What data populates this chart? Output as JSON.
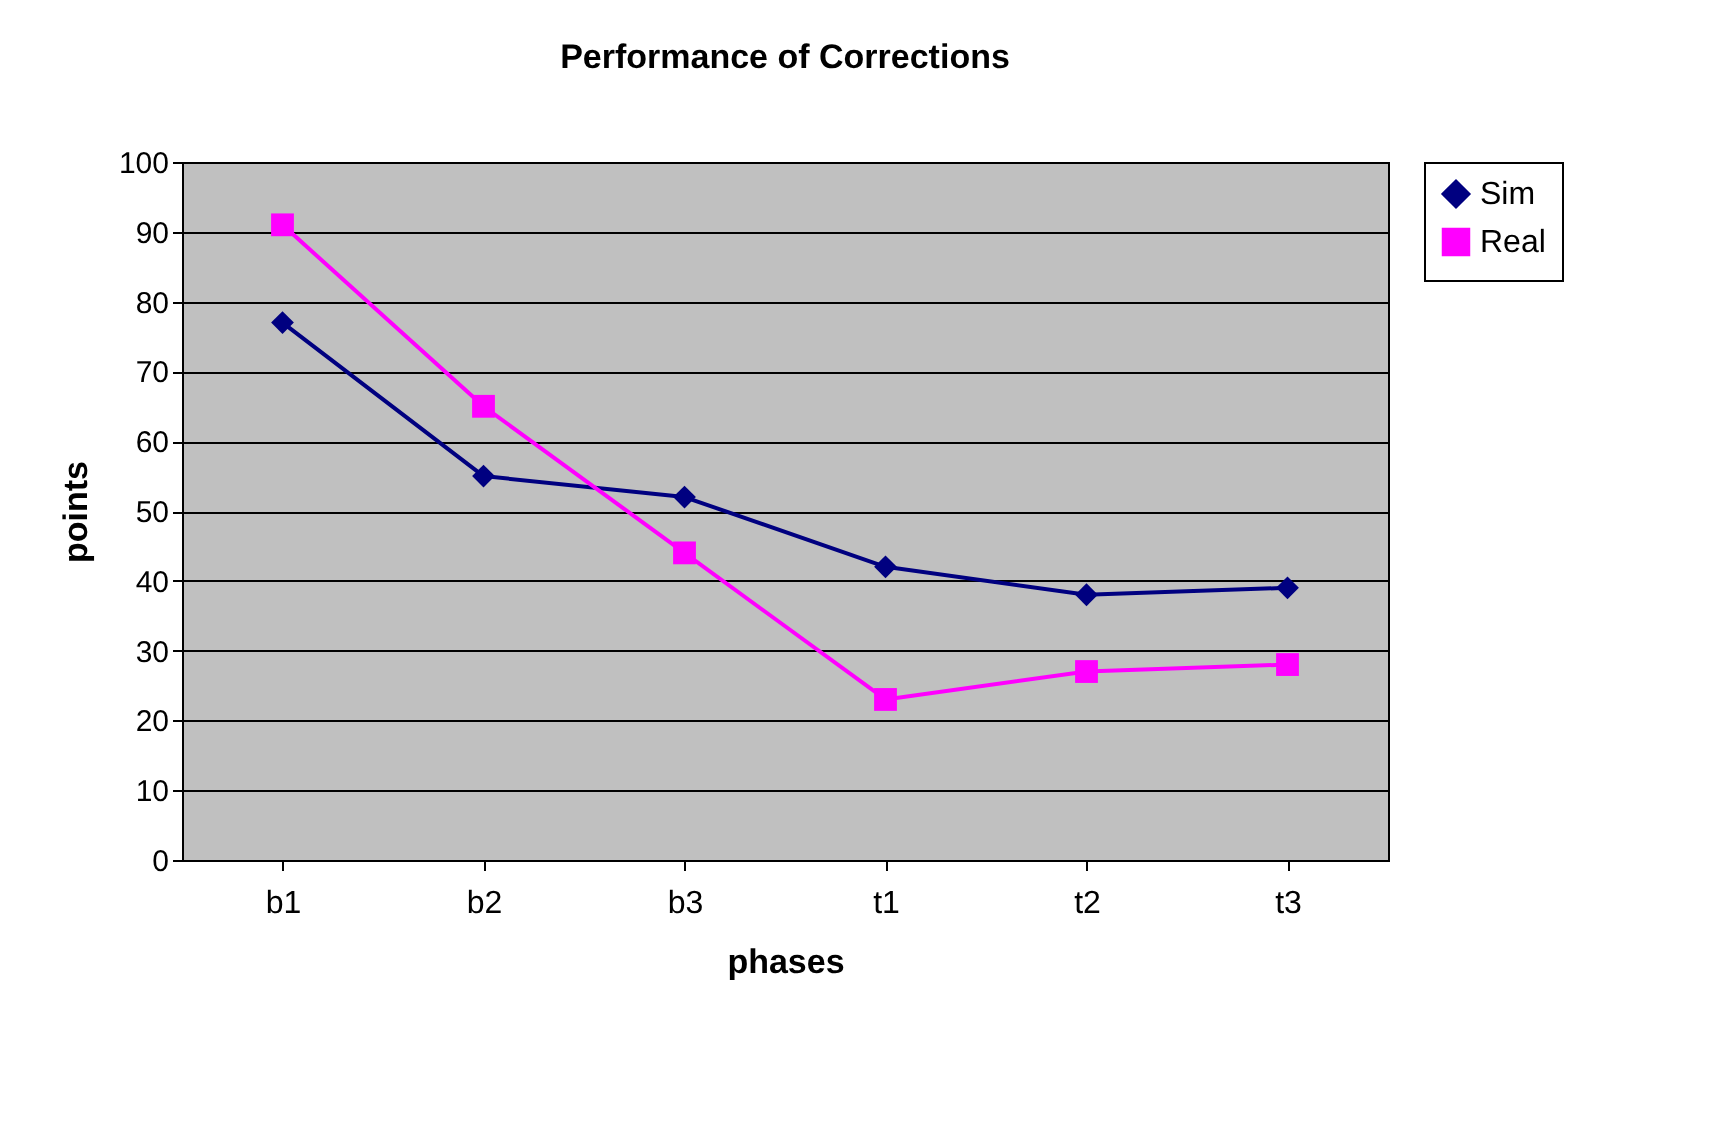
{
  "chart_data": {
    "type": "line",
    "title": "Performance of Corrections",
    "xlabel": "phases",
    "ylabel": "points",
    "categories": [
      "b1",
      "b2",
      "b3",
      "t1",
      "t2",
      "t3"
    ],
    "series": [
      {
        "name": "Sim",
        "color": "#000080",
        "marker": "diamond",
        "values": [
          77,
          55,
          52,
          42,
          38,
          39
        ]
      },
      {
        "name": "Real",
        "color": "#ff00ff",
        "marker": "square",
        "values": [
          91,
          65,
          44,
          23,
          27,
          28
        ]
      }
    ],
    "ylim": [
      0,
      100
    ],
    "yticks": [
      0,
      10,
      20,
      30,
      40,
      50,
      60,
      70,
      80,
      90,
      100
    ],
    "grid": "y",
    "legend": "right"
  }
}
